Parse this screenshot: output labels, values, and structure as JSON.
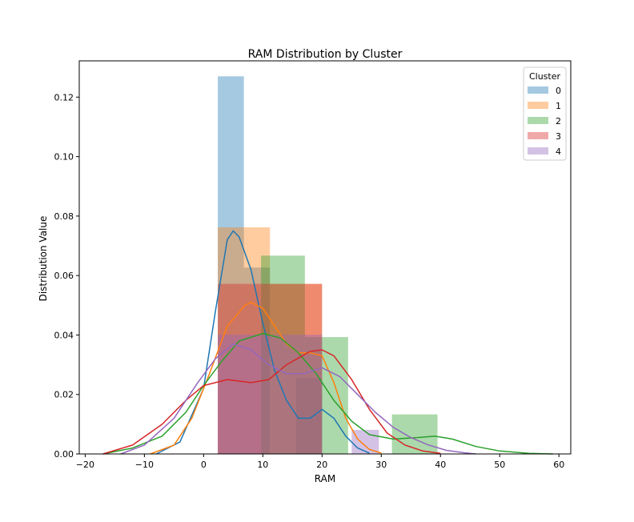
{
  "chart_data": {
    "type": "histogram+kde",
    "title": "RAM Distribution by Cluster",
    "xlabel": "RAM",
    "ylabel": "Distribution Value",
    "xlim": [
      -21,
      62
    ],
    "ylim": [
      0,
      0.1322
    ],
    "xticks": [
      -20,
      -10,
      0,
      10,
      20,
      30,
      40,
      50,
      60
    ],
    "yticks": [
      0.0,
      0.02,
      0.04,
      0.06,
      0.08,
      0.1,
      0.12
    ],
    "ytick_labels": [
      "0.00",
      "0.02",
      "0.04",
      "0.06",
      "0.08",
      "0.10",
      "0.12"
    ],
    "grid": false,
    "legend": {
      "title": "Cluster",
      "placement": "top-right"
    },
    "series": [
      {
        "name": "0",
        "color": "#1f77b4",
        "hist": [
          {
            "x0": 2.4,
            "x1": 6.8,
            "height": 0.127
          },
          {
            "x0": 6.8,
            "x1": 11.2,
            "height": 0.0627
          },
          {
            "x0": 11.2,
            "x1": 15.6,
            "height": 0.0
          },
          {
            "x0": 15.6,
            "x1": 20.0,
            "height": 0.0255
          },
          {
            "x0": 20.0,
            "x1": 24.4,
            "height": 0.0
          },
          {
            "x0": 24.4,
            "x1": 28.8,
            "height": 0.0
          }
        ],
        "kde": [
          [
            -8,
            0
          ],
          [
            -4,
            0.004
          ],
          [
            0,
            0.022
          ],
          [
            2,
            0.048
          ],
          [
            4,
            0.072
          ],
          [
            5,
            0.075
          ],
          [
            6,
            0.073
          ],
          [
            8,
            0.062
          ],
          [
            10,
            0.044
          ],
          [
            12,
            0.028
          ],
          [
            14,
            0.018
          ],
          [
            16,
            0.012
          ],
          [
            18,
            0.012
          ],
          [
            20,
            0.015
          ],
          [
            22,
            0.012
          ],
          [
            24,
            0.006
          ],
          [
            26,
            0.002
          ],
          [
            28,
            0.0003
          ]
        ]
      },
      {
        "name": "1",
        "color": "#ff7f0e",
        "hist": [
          {
            "x0": 2.4,
            "x1": 11.2,
            "height": 0.0762
          },
          {
            "x0": 11.2,
            "x1": 20.0,
            "height": 0.0572
          },
          {
            "x0": 20.0,
            "x1": 28.8,
            "height": 0.0
          }
        ],
        "kde": [
          [
            -9,
            0
          ],
          [
            -5,
            0.003
          ],
          [
            -2,
            0.012
          ],
          [
            1,
            0.027
          ],
          [
            4,
            0.043
          ],
          [
            7,
            0.05
          ],
          [
            8,
            0.051
          ],
          [
            10,
            0.049
          ],
          [
            12,
            0.043
          ],
          [
            14,
            0.037
          ],
          [
            16,
            0.034
          ],
          [
            18,
            0.034
          ],
          [
            20,
            0.033
          ],
          [
            22,
            0.024
          ],
          [
            24,
            0.012
          ],
          [
            26,
            0.005
          ],
          [
            28,
            0.0015
          ],
          [
            30,
            0.0003
          ]
        ]
      },
      {
        "name": "2",
        "color": "#2ca02c",
        "hist": [
          {
            "x0": 2.4,
            "x1": 9.7,
            "height": 0.0
          },
          {
            "x0": 9.7,
            "x1": 17.1,
            "height": 0.0667
          },
          {
            "x0": 17.1,
            "x1": 24.4,
            "height": 0.0393
          },
          {
            "x0": 24.4,
            "x1": 31.8,
            "height": 0.0
          },
          {
            "x0": 31.8,
            "x1": 39.5,
            "height": 0.0133
          }
        ],
        "kde": [
          [
            -17,
            0
          ],
          [
            -12,
            0.002
          ],
          [
            -7,
            0.006
          ],
          [
            -3,
            0.014
          ],
          [
            0,
            0.023
          ],
          [
            3,
            0.031
          ],
          [
            6,
            0.038
          ],
          [
            10,
            0.0405
          ],
          [
            13,
            0.039
          ],
          [
            16,
            0.034
          ],
          [
            19,
            0.027
          ],
          [
            22,
            0.018
          ],
          [
            25,
            0.011
          ],
          [
            28,
            0.0065
          ],
          [
            32,
            0.005
          ],
          [
            36,
            0.0055
          ],
          [
            39,
            0.006
          ],
          [
            42,
            0.005
          ],
          [
            46,
            0.0025
          ],
          [
            50,
            0.001
          ],
          [
            55,
            0.0002
          ],
          [
            59,
            0
          ]
        ]
      },
      {
        "name": "3",
        "color": "#d62728",
        "hist": [
          {
            "x0": 2.4,
            "x1": 11.2,
            "height": 0.0572
          },
          {
            "x0": 11.2,
            "x1": 20.0,
            "height": 0.0572
          }
        ],
        "kde": [
          [
            -17,
            0
          ],
          [
            -12,
            0.003
          ],
          [
            -7,
            0.01
          ],
          [
            -3,
            0.018
          ],
          [
            0,
            0.023
          ],
          [
            4,
            0.025
          ],
          [
            8,
            0.024
          ],
          [
            11,
            0.025
          ],
          [
            14,
            0.03
          ],
          [
            18,
            0.0345
          ],
          [
            20,
            0.035
          ],
          [
            22,
            0.033
          ],
          [
            25,
            0.025
          ],
          [
            28,
            0.015
          ],
          [
            31,
            0.007
          ],
          [
            34,
            0.003
          ],
          [
            37,
            0.001
          ],
          [
            40,
            0.0002
          ]
        ]
      },
      {
        "name": "4",
        "color": "#9467bd",
        "hist": [
          {
            "x0": 2.4,
            "x1": 11.2,
            "height": 0.0401
          },
          {
            "x0": 11.2,
            "x1": 20.0,
            "height": 0.0401
          },
          {
            "x0": 20.0,
            "x1": 25.0,
            "height": 0.0
          },
          {
            "x0": 25.0,
            "x1": 29.6,
            "height": 0.0081
          }
        ],
        "kde": [
          [
            -14,
            0
          ],
          [
            -10,
            0.003
          ],
          [
            -5,
            0.012
          ],
          [
            -1,
            0.024
          ],
          [
            2,
            0.032
          ],
          [
            5,
            0.037
          ],
          [
            8,
            0.035
          ],
          [
            11,
            0.03
          ],
          [
            14,
            0.027
          ],
          [
            17,
            0.027
          ],
          [
            20,
            0.029
          ],
          [
            23,
            0.026
          ],
          [
            26,
            0.02
          ],
          [
            29,
            0.014
          ],
          [
            32,
            0.009
          ],
          [
            35,
            0.0055
          ],
          [
            38,
            0.003
          ],
          [
            41,
            0.0012
          ],
          [
            44,
            0.0004
          ],
          [
            46,
            0
          ]
        ]
      }
    ]
  }
}
